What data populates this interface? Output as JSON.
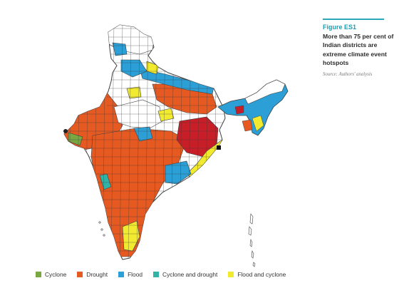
{
  "figure": {
    "label": "Figure ES1",
    "title": "More than 75 per cent of Indian districts are extreme climate event hotspots",
    "source": "Source: Authors' analysis"
  },
  "legend": [
    {
      "label": "Cyclone",
      "color": "#79a843"
    },
    {
      "label": "Drought",
      "color": "#e65a22"
    },
    {
      "label": "Flood",
      "color": "#2b9fd6"
    },
    {
      "label": "Cyclone and drought",
      "color": "#33b3a6"
    },
    {
      "label": "Flood and cyclone",
      "color": "#f1ea2f"
    }
  ],
  "colors": {
    "none": "#ffffff",
    "border": "#404040",
    "drought": "#e65a22",
    "flood": "#2b9fd6",
    "cyclone": "#79a843",
    "cyclone_drought": "#33b3a6",
    "flood_cyclone": "#f1ea2f",
    "red_cluster": "#c81e27"
  }
}
